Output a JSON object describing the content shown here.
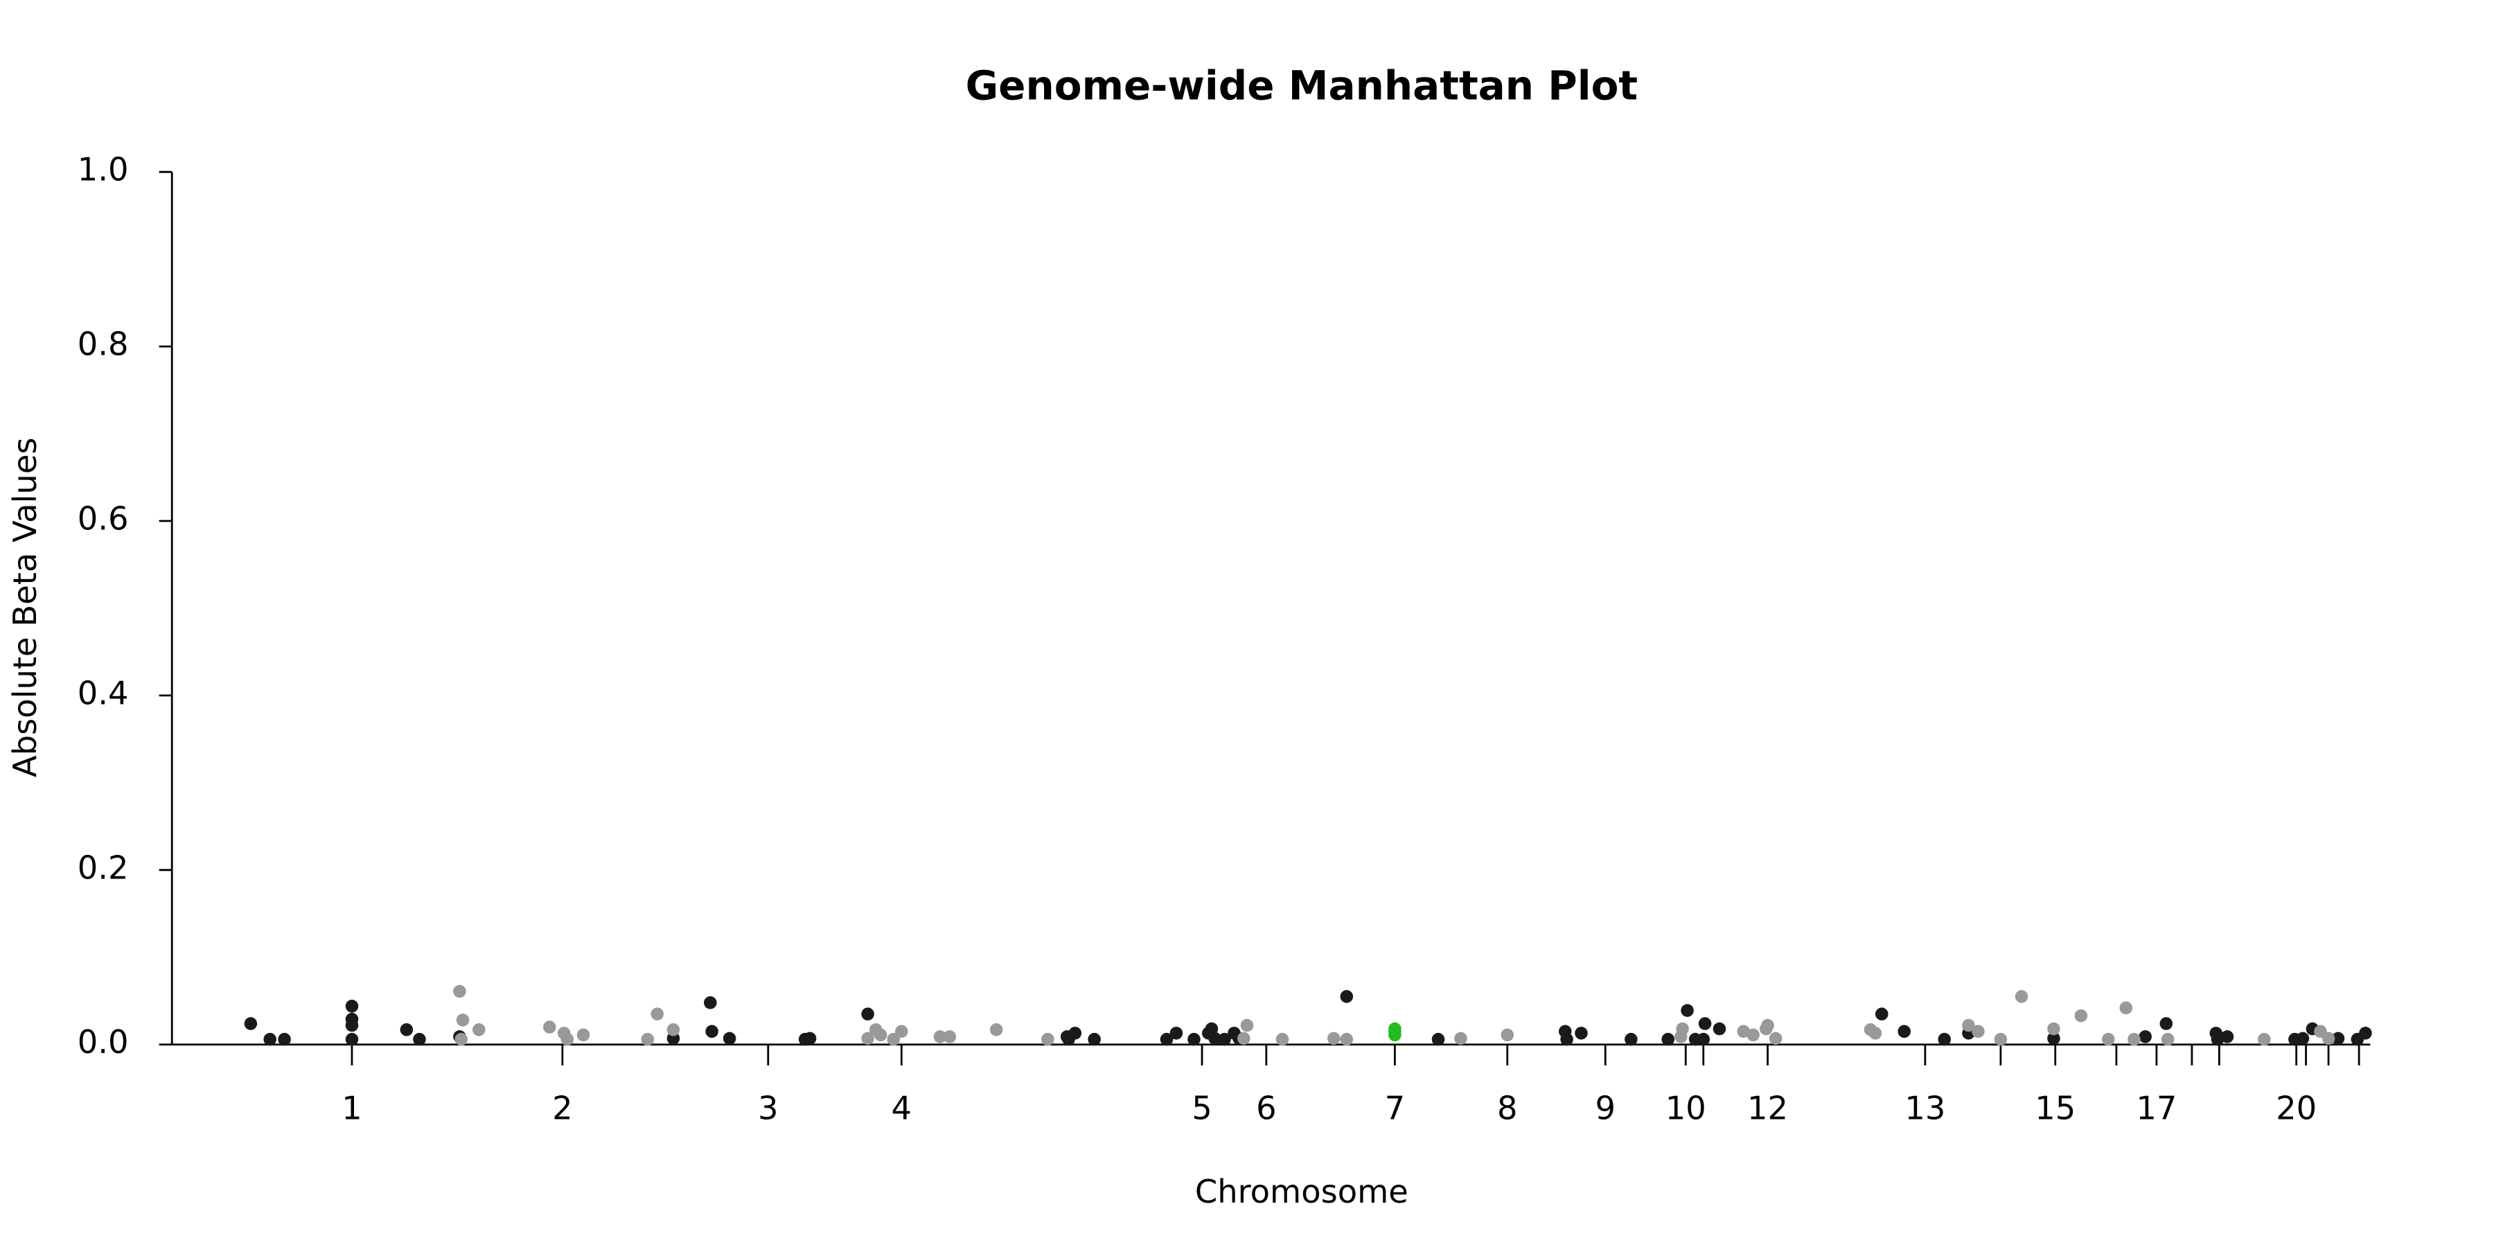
{
  "chart_data": {
    "type": "scatter",
    "title": "Genome-wide Manhattan Plot",
    "x_label": "Chromosome",
    "y_label": "Absolute Beta Values",
    "xlim": [
      107,
      1475
    ],
    "ylim": [
      0,
      1
    ],
    "yticks": [
      {
        "value": 0,
        "label": "0.0"
      },
      0.2,
      0.4,
      0.6,
      0.8,
      {
        "value": 1,
        "label": "1.0"
      }
    ],
    "xticks": [
      {
        "value": 219,
        "label": "1"
      },
      {
        "value": 350,
        "label": "2"
      },
      {
        "value": 478,
        "label": "3"
      },
      {
        "value": 561,
        "label": "4"
      },
      {
        "value": 748,
        "label": "5"
      },
      {
        "value": 788,
        "label": "6"
      },
      {
        "value": 868,
        "label": "7"
      },
      {
        "value": 938,
        "label": "8"
      },
      {
        "value": 999,
        "label": "9"
      },
      {
        "value": 1049,
        "label": "10"
      },
      {
        "value": 1060,
        "label": null
      },
      {
        "value": 1100,
        "label": "12"
      },
      {
        "value": 1198,
        "label": "13"
      },
      {
        "value": 1245,
        "label": null
      },
      {
        "value": 1279,
        "label": "15"
      },
      {
        "value": 1317,
        "label": null
      },
      {
        "value": 1342,
        "label": "17"
      },
      {
        "value": 1364,
        "label": null
      },
      {
        "value": 1381,
        "label": null
      },
      {
        "value": 1429,
        "label": "20"
      },
      {
        "value": 1435,
        "label": null
      },
      {
        "value": 1449,
        "label": null
      },
      {
        "value": 1468,
        "label": null
      }
    ],
    "series": [
      {
        "color": "#1a1a1a",
        "x": [
          156,
          168,
          177,
          219,
          219,
          219,
          219,
          253,
          261,
          286,
          442,
          443,
          454,
          419,
          501,
          504,
          540,
          664,
          665,
          669,
          681,
          726,
          732,
          743,
          752,
          754,
          756,
          762,
          768,
          771,
          838,
          895,
          974,
          975,
          984,
          1015,
          1038,
          1050,
          1055,
          1060,
          1061,
          1070,
          1171,
          1185,
          1210,
          1225,
          1278,
          1335,
          1348,
          1379,
          1380,
          1386,
          1428,
          1433,
          1439,
          1455,
          1467,
          1472
        ],
        "values": [
          0.024,
          0.006,
          0.006,
          0.044,
          0.029,
          0.022,
          0.006,
          0.017,
          0.006,
          0.009,
          0.048,
          0.015,
          0.007,
          0.007,
          0.006,
          0.007,
          0.035,
          0.009,
          0.006,
          0.013,
          0.006,
          0.006,
          0.013,
          0.006,
          0.013,
          0.018,
          0.007,
          0.006,
          0.013,
          0.007,
          0.055,
          0.006,
          0.015,
          0.006,
          0.013,
          0.006,
          0.006,
          0.039,
          0.006,
          0.006,
          0.024,
          0.018,
          0.035,
          0.015,
          0.006,
          0.013,
          0.007,
          0.009,
          0.024,
          0.013,
          0.006,
          0.009,
          0.006,
          0.007,
          0.018,
          0.007,
          0.006,
          0.013
        ]
      },
      {
        "color": "#999999",
        "x": [
          286,
          288,
          287,
          298,
          342,
          351,
          353,
          363,
          403,
          409,
          419,
          540,
          545,
          548,
          556,
          561,
          585,
          591,
          620,
          652,
          776,
          774,
          798,
          830,
          838,
          909,
          938,
          1047,
          1046,
          1085,
          1091,
          1099,
          1100,
          1105,
          1164,
          1167,
          1225,
          1231,
          1245,
          1258,
          1278,
          1295,
          1312,
          1323,
          1328,
          1349,
          1409,
          1444,
          1449
        ],
        "values": [
          0.061,
          0.028,
          0.006,
          0.017,
          0.02,
          0.013,
          0.006,
          0.011,
          0.006,
          0.035,
          0.017,
          0.007,
          0.017,
          0.011,
          0.006,
          0.015,
          0.009,
          0.009,
          0.017,
          0.006,
          0.022,
          0.007,
          0.006,
          0.007,
          0.006,
          0.007,
          0.011,
          0.018,
          0.009,
          0.015,
          0.011,
          0.018,
          0.022,
          0.007,
          0.017,
          0.013,
          0.022,
          0.015,
          0.006,
          0.055,
          0.018,
          0.033,
          0.006,
          0.042,
          0.006,
          0.006,
          0.006,
          0.015,
          0.007
        ]
      },
      {
        "color": "#22bb22",
        "x": [
          868,
          868,
          868
        ],
        "values": [
          0.018,
          0.015,
          0.011
        ]
      }
    ]
  }
}
